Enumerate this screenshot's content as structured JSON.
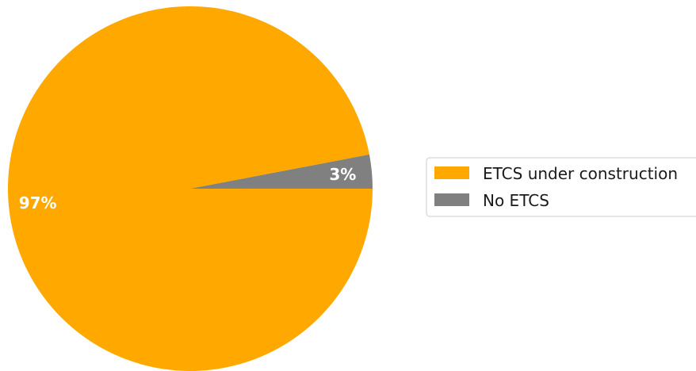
{
  "chart_data": {
    "type": "pie",
    "slices": [
      {
        "label": "ETCS under construction",
        "value": 97,
        "display": "97%",
        "color": "#ffa900"
      },
      {
        "label": "No ETCS",
        "value": 3,
        "display": "3%",
        "color": "#808080"
      }
    ],
    "start_angle_deg": 0,
    "direction": "clockwise",
    "legend_position": "right"
  }
}
